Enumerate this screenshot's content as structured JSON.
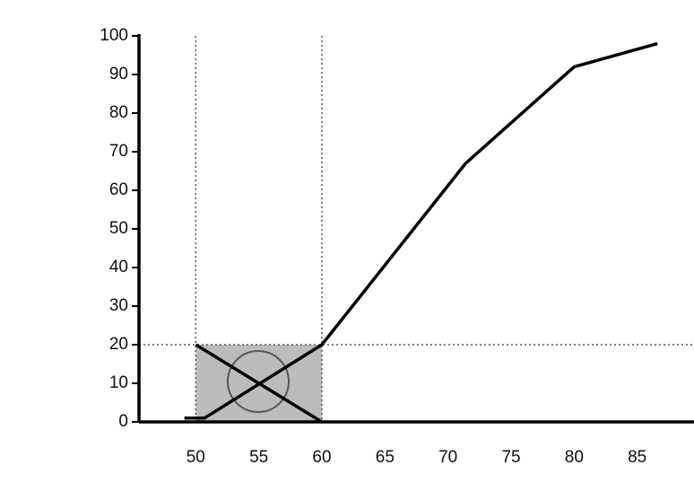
{
  "chart_data": {
    "type": "line",
    "series": [
      {
        "color": "#000000",
        "x": [
          49.1,
          50.7,
          60,
          71.4,
          80,
          86.6
        ],
        "values": [
          1,
          1,
          20,
          67,
          92,
          98
        ]
      },
      {
        "color": "#000000",
        "x": [
          50,
          60
        ],
        "values": [
          20,
          0
        ]
      }
    ],
    "xlim": [
      45.5,
      89.5
    ],
    "xticks": [
      50,
      55,
      60,
      65,
      70,
      75,
      80,
      85
    ],
    "ylim": [
      0,
      100
    ],
    "yticks": [
      0,
      10,
      20,
      30,
      40,
      50,
      60,
      70,
      80,
      90,
      100
    ],
    "vlines": [
      50,
      60
    ],
    "hline": 20,
    "highlight": {
      "xlim": [
        50,
        60
      ],
      "ylim": [
        0,
        20
      ],
      "color": "#b0b0b0"
    }
  }
}
